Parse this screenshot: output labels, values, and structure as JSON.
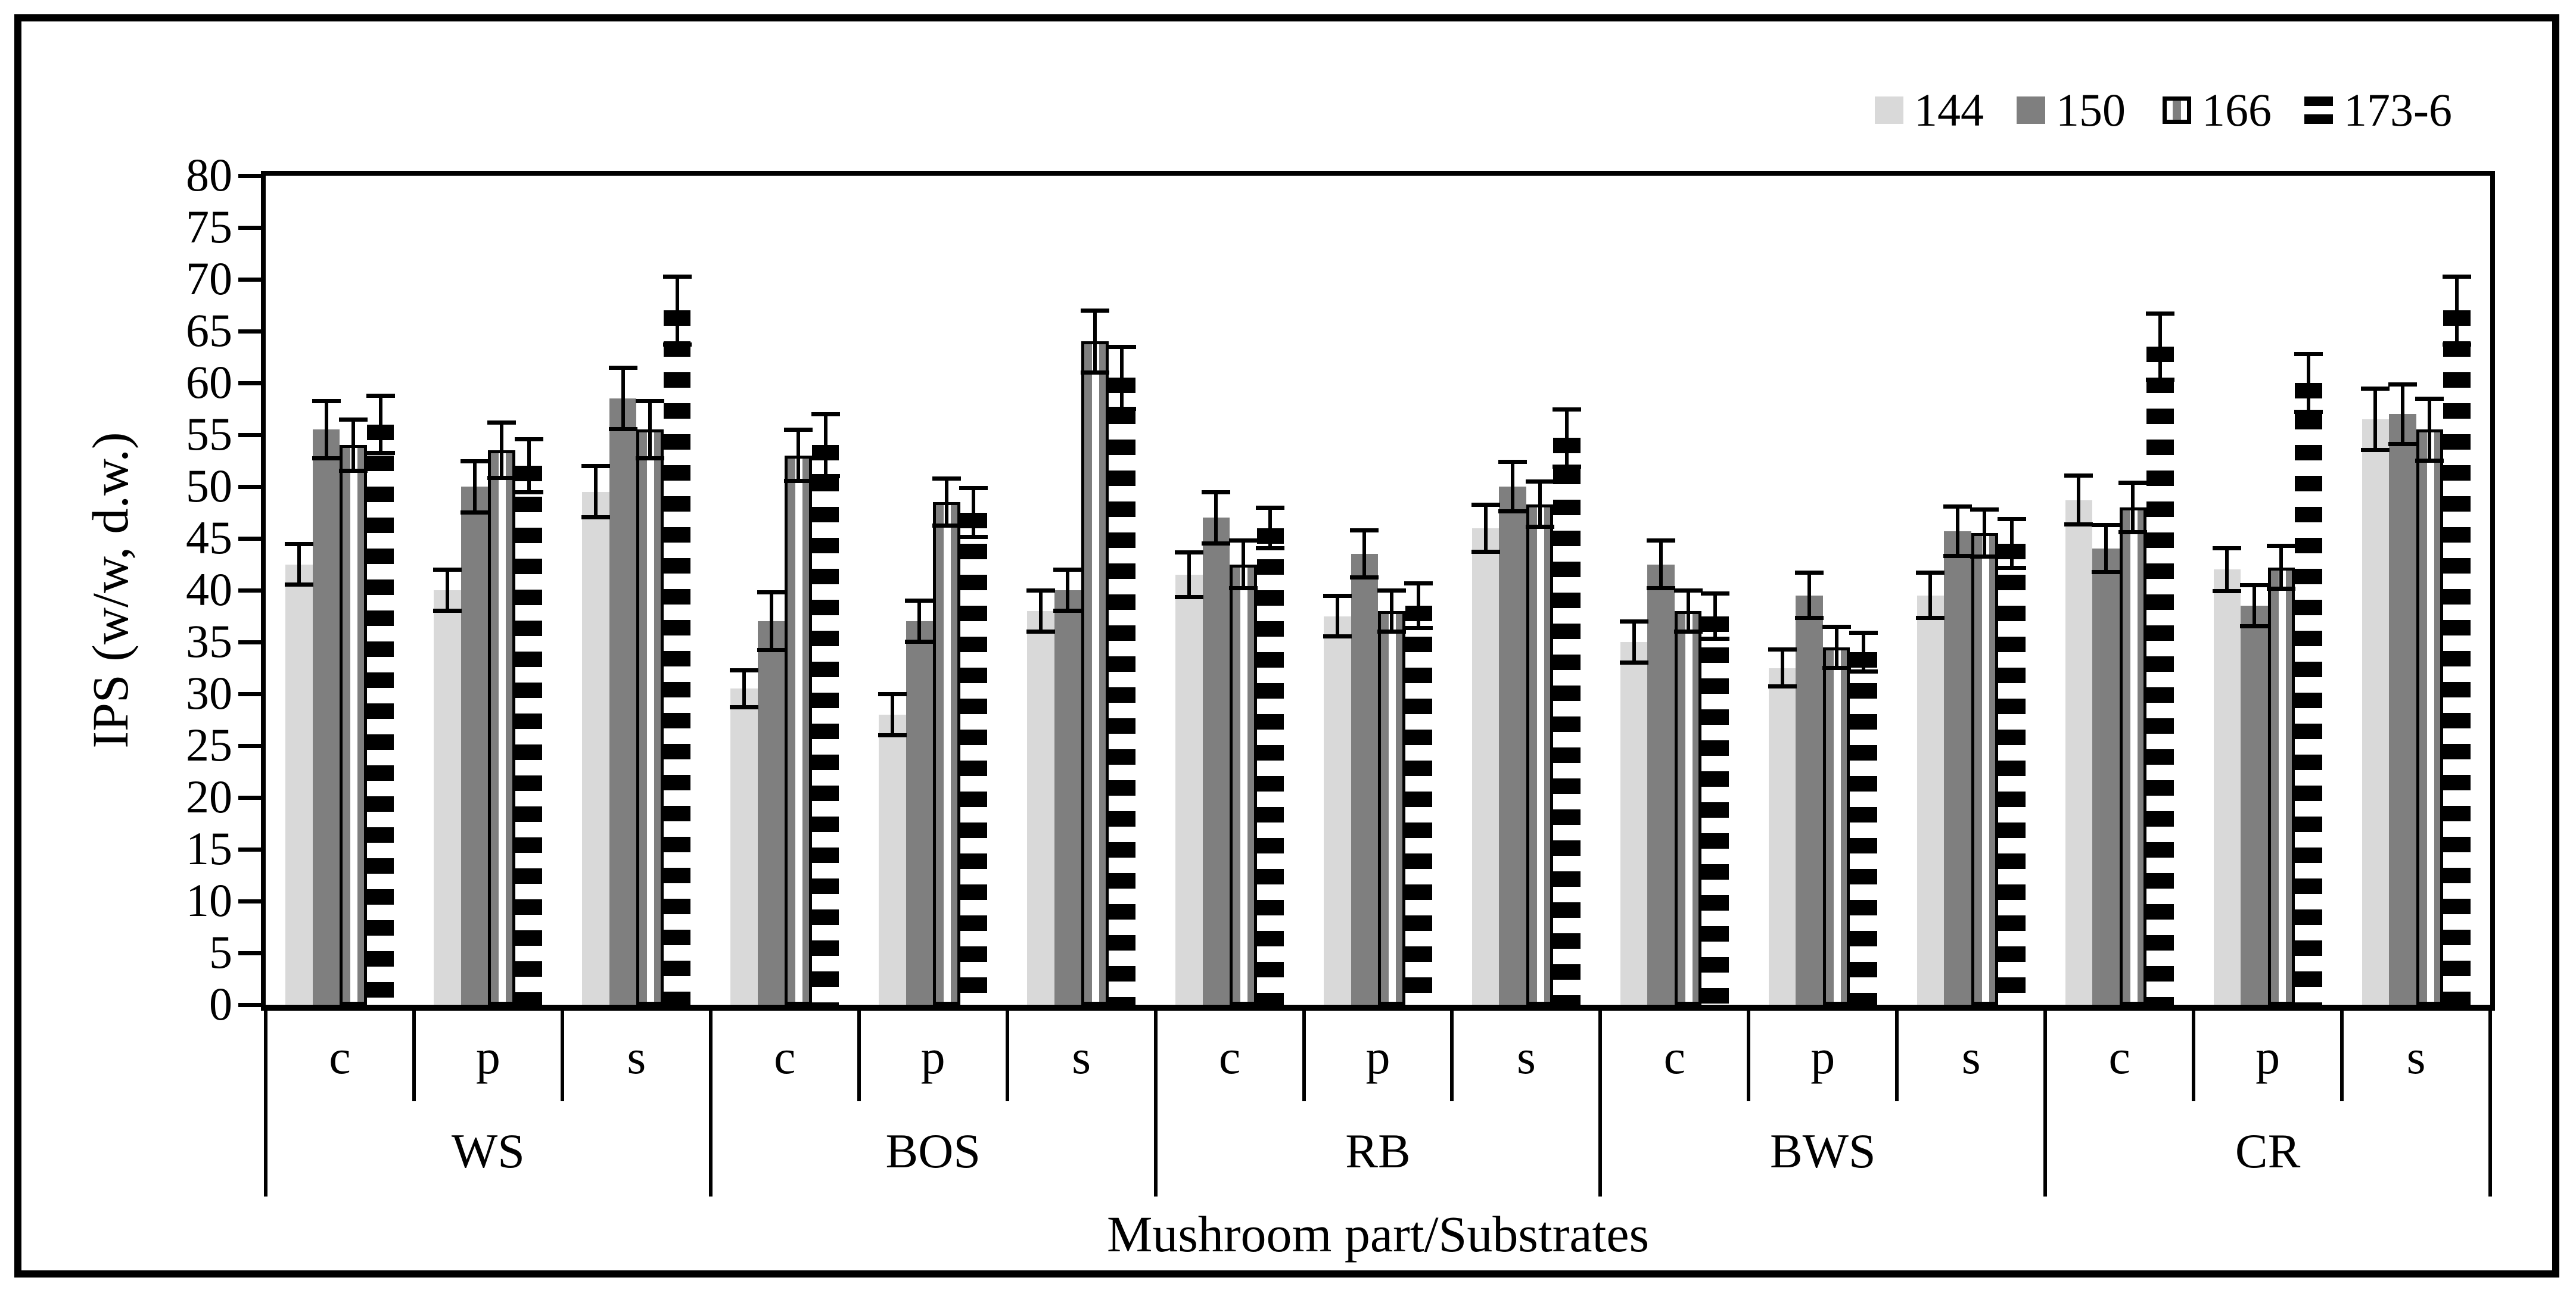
{
  "figure": {
    "ylabel": "IPS (w/w, d.w.)",
    "xlabel": "Mushroom part/Substrates"
  },
  "legend": {
    "items": [
      "144",
      "150",
      "166",
      "173-6"
    ]
  },
  "colors": {
    "series_144": "#d9d9d9",
    "series_150": "#7f7f7f",
    "series_166_stripes": "#7f7f7f",
    "series_173_stripes": "#000000",
    "axis": "#000000",
    "background": "#ffffff"
  },
  "chart_data": {
    "type": "bar",
    "title": "",
    "xlabel": "Mushroom part/Substrates",
    "ylabel": "IPS (w/w, d.w.)",
    "ylim": [
      0,
      80
    ],
    "ytick_step": 5,
    "grid": false,
    "legend_position": "top-right",
    "error_bars": true,
    "groups": [
      "WS",
      "BOS",
      "RB",
      "BWS",
      "CR"
    ],
    "parts": [
      "c",
      "p",
      "s"
    ],
    "categories": [
      "WS-c",
      "WS-p",
      "WS-s",
      "BOS-c",
      "BOS-p",
      "BOS-s",
      "RB-c",
      "RB-p",
      "RB-s",
      "BWS-c",
      "BWS-p",
      "BWS-s",
      "CR-c",
      "CR-p",
      "CR-s"
    ],
    "series": [
      {
        "name": "144",
        "pattern": "light-gray-solid",
        "values": [
          42.5,
          40,
          49.5,
          30.5,
          28,
          38,
          41.5,
          37.5,
          46,
          35,
          32.5,
          39.5,
          48.7,
          42,
          56.5
        ],
        "errors": [
          2,
          2,
          2.5,
          1.8,
          2,
          2,
          2.2,
          2,
          2.3,
          2,
          1.8,
          2.2,
          2.4,
          2.1,
          3
        ]
      },
      {
        "name": "150",
        "pattern": "dark-gray-solid",
        "values": [
          55.5,
          50,
          58.5,
          37,
          37,
          40,
          47,
          43.5,
          50,
          42.5,
          39.5,
          45.7,
          44,
          38.5,
          57
        ],
        "errors": [
          2.8,
          2.5,
          3,
          2.8,
          2,
          2,
          2.5,
          2.3,
          2.4,
          2.3,
          2.2,
          2.4,
          2.3,
          2,
          2.9
        ]
      },
      {
        "name": "166",
        "pattern": "vertical-stripes-outlined",
        "values": [
          54,
          53.5,
          55.5,
          53,
          48.5,
          64,
          42.5,
          38,
          48.3,
          38,
          34.5,
          45.5,
          48,
          42.2,
          55.5
        ],
        "errors": [
          2.5,
          2.7,
          2.8,
          2.5,
          2.3,
          3,
          2.3,
          2,
          2.2,
          2,
          2,
          2.3,
          2.4,
          2.1,
          3
        ]
      },
      {
        "name": "173-6",
        "pattern": "horizontal-stripes",
        "values": [
          56,
          52,
          67,
          54,
          47.5,
          60.5,
          46,
          38.5,
          54.7,
          37.5,
          34,
          44.5,
          63.5,
          60,
          67
        ],
        "errors": [
          2.8,
          2.6,
          3.3,
          3,
          2.4,
          3,
          2,
          2.2,
          2.8,
          2.2,
          1.9,
          2.4,
          3.2,
          2.8,
          3.3
        ]
      }
    ]
  }
}
